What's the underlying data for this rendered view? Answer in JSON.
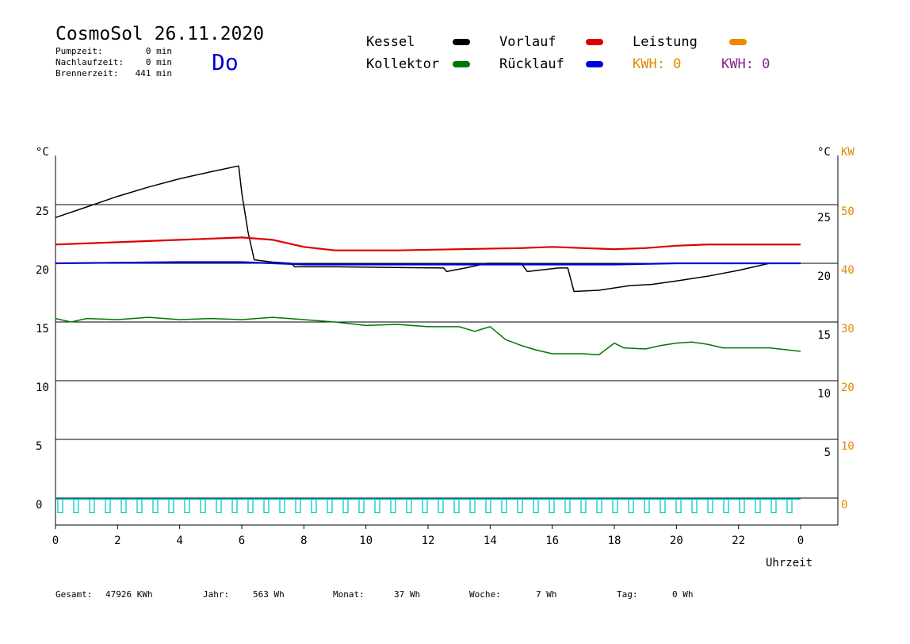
{
  "header": {
    "title": "CosmoSol 26.11.2020",
    "day": "Do",
    "stats": [
      {
        "label": "Pumpzeit:",
        "value": "0 min"
      },
      {
        "label": "Nachlaufzeit:",
        "value": "0 min"
      },
      {
        "label": "Brennerzeit:",
        "value": "441 min"
      }
    ]
  },
  "legend": {
    "kessel": "Kessel",
    "kollektor": "Kollektor",
    "vorlauf": "Vorlauf",
    "ruecklauf": "Rücklauf",
    "leistung": "Leistung",
    "kwh1": "KWH: 0",
    "kwh2": "KWH: 0"
  },
  "colors": {
    "kessel": "#000000",
    "kollektor": "#007700",
    "vorlauf": "#dd0000",
    "ruecklauf": "#0000dd",
    "leistung": "#ee8800",
    "pump": "#00cccc",
    "kwh2": "#882288",
    "kw_axis": "#e08a00"
  },
  "footer": {
    "gesamt_label": "Gesamt:",
    "gesamt_value": "47926 KWh",
    "jahr_label": "Jahr:",
    "jahr_value": "563 Wh",
    "monat_label": "Monat:",
    "monat_value": "37 Wh",
    "woche_label": "Woche:",
    "woche_value": "7 Wh",
    "tag_label": "Tag:",
    "tag_value": "0 Wh"
  },
  "chart_data": {
    "type": "line",
    "xlabel": "Uhrzeit",
    "ylabel": "°C",
    "ylabel_right": "°C",
    "ylabel_right2": "KW",
    "xlim": [
      0,
      24
    ],
    "ylim": [
      -1.5,
      28.5
    ],
    "xticks": [
      "0",
      "2",
      "4",
      "6",
      "8",
      "10",
      "12",
      "14",
      "16",
      "18",
      "20",
      "22",
      "0"
    ],
    "yticks_left": [
      "0",
      "5",
      "10",
      "15",
      "20",
      "25"
    ],
    "yticks_right": [
      "5",
      "10",
      "15",
      "20",
      "25"
    ],
    "yticks_kw": [
      "0",
      "10",
      "20",
      "30",
      "40",
      "50"
    ],
    "grid": true,
    "series": [
      {
        "name": "Kessel",
        "points": [
          [
            0,
            23.9
          ],
          [
            1,
            24.8
          ],
          [
            2,
            25.7
          ],
          [
            3,
            26.5
          ],
          [
            4,
            27.2
          ],
          [
            5,
            27.8
          ],
          [
            5.9,
            28.3
          ],
          [
            6,
            26
          ],
          [
            6.2,
            22.7
          ],
          [
            6.4,
            20.3
          ],
          [
            7,
            20.1
          ],
          [
            7.6,
            20.0
          ],
          [
            7.7,
            19.7
          ],
          [
            9,
            19.7
          ],
          [
            12.5,
            19.6
          ],
          [
            12.6,
            19.3
          ],
          [
            13.2,
            19.6
          ],
          [
            13.9,
            20.0
          ],
          [
            15,
            20.0
          ],
          [
            15.2,
            19.3
          ],
          [
            16.2,
            19.6
          ],
          [
            16.5,
            19.6
          ],
          [
            16.7,
            17.6
          ],
          [
            17.5,
            17.7
          ],
          [
            18.5,
            18.1
          ],
          [
            19.2,
            18.2
          ],
          [
            20,
            18.5
          ],
          [
            21,
            18.9
          ],
          [
            22,
            19.4
          ],
          [
            23,
            20.0
          ],
          [
            24,
            20.0
          ]
        ]
      },
      {
        "name": "Vorlauf",
        "points": [
          [
            0,
            21.6
          ],
          [
            2,
            21.8
          ],
          [
            4,
            22.0
          ],
          [
            6,
            22.2
          ],
          [
            7,
            22.0
          ],
          [
            8,
            21.4
          ],
          [
            9,
            21.1
          ],
          [
            11,
            21.1
          ],
          [
            13,
            21.2
          ],
          [
            15,
            21.3
          ],
          [
            16,
            21.4
          ],
          [
            17,
            21.3
          ],
          [
            18,
            21.2
          ],
          [
            19,
            21.3
          ],
          [
            20,
            21.5
          ],
          [
            21,
            21.6
          ],
          [
            22,
            21.6
          ],
          [
            24,
            21.6
          ]
        ]
      },
      {
        "name": "Rücklauf",
        "points": [
          [
            0,
            20.0
          ],
          [
            4,
            20.1
          ],
          [
            6,
            20.1
          ],
          [
            8,
            19.9
          ],
          [
            10,
            19.9
          ],
          [
            12,
            19.9
          ],
          [
            14,
            19.9
          ],
          [
            16,
            19.9
          ],
          [
            18,
            19.9
          ],
          [
            20,
            20.0
          ],
          [
            22,
            20.0
          ],
          [
            24,
            20.0
          ]
        ]
      },
      {
        "name": "Kollektor",
        "points": [
          [
            0,
            15.3
          ],
          [
            0.5,
            15.0
          ],
          [
            1,
            15.3
          ],
          [
            2,
            15.2
          ],
          [
            3,
            15.4
          ],
          [
            4,
            15.2
          ],
          [
            5,
            15.3
          ],
          [
            6,
            15.2
          ],
          [
            7,
            15.4
          ],
          [
            8,
            15.2
          ],
          [
            9,
            15.0
          ],
          [
            10,
            14.7
          ],
          [
            11,
            14.8
          ],
          [
            12,
            14.6
          ],
          [
            13,
            14.6
          ],
          [
            13.5,
            14.2
          ],
          [
            14,
            14.6
          ],
          [
            14.5,
            13.5
          ],
          [
            15,
            13.0
          ],
          [
            15.5,
            12.6
          ],
          [
            16,
            12.3
          ],
          [
            17,
            12.3
          ],
          [
            17.5,
            12.2
          ],
          [
            18,
            13.2
          ],
          [
            18.3,
            12.8
          ],
          [
            19,
            12.7
          ],
          [
            19.5,
            13.0
          ],
          [
            20,
            13.2
          ],
          [
            20.5,
            13.3
          ],
          [
            21,
            13.1
          ],
          [
            21.5,
            12.8
          ],
          [
            22,
            12.8
          ],
          [
            23,
            12.8
          ],
          [
            24,
            12.5
          ]
        ]
      },
      {
        "name": "Pumpe",
        "points": [
          [
            0,
            -0.5
          ],
          [
            24,
            -0.5
          ]
        ]
      }
    ]
  }
}
